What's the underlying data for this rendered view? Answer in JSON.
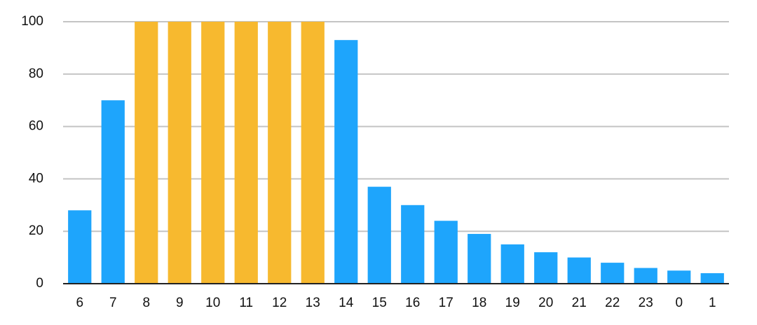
{
  "chart_data": {
    "type": "bar",
    "categories": [
      "6",
      "7",
      "8",
      "9",
      "10",
      "11",
      "12",
      "13",
      "14",
      "15",
      "16",
      "17",
      "18",
      "19",
      "20",
      "21",
      "22",
      "23",
      "0",
      "1"
    ],
    "values": [
      28,
      70,
      100,
      100,
      100,
      100,
      100,
      100,
      93,
      37,
      30,
      24,
      19,
      15,
      12,
      10,
      8,
      6,
      5,
      4
    ],
    "colors": [
      "#1ea5fc",
      "#1ea5fc",
      "#f7b92f",
      "#f7b92f",
      "#f7b92f",
      "#f7b92f",
      "#f7b92f",
      "#f7b92f",
      "#1ea5fc",
      "#1ea5fc",
      "#1ea5fc",
      "#1ea5fc",
      "#1ea5fc",
      "#1ea5fc",
      "#1ea5fc",
      "#1ea5fc",
      "#1ea5fc",
      "#1ea5fc",
      "#1ea5fc",
      "#1ea5fc"
    ],
    "ylim": [
      0,
      100
    ],
    "yticks": [
      0,
      20,
      40,
      60,
      80,
      100
    ],
    "grid": true
  }
}
